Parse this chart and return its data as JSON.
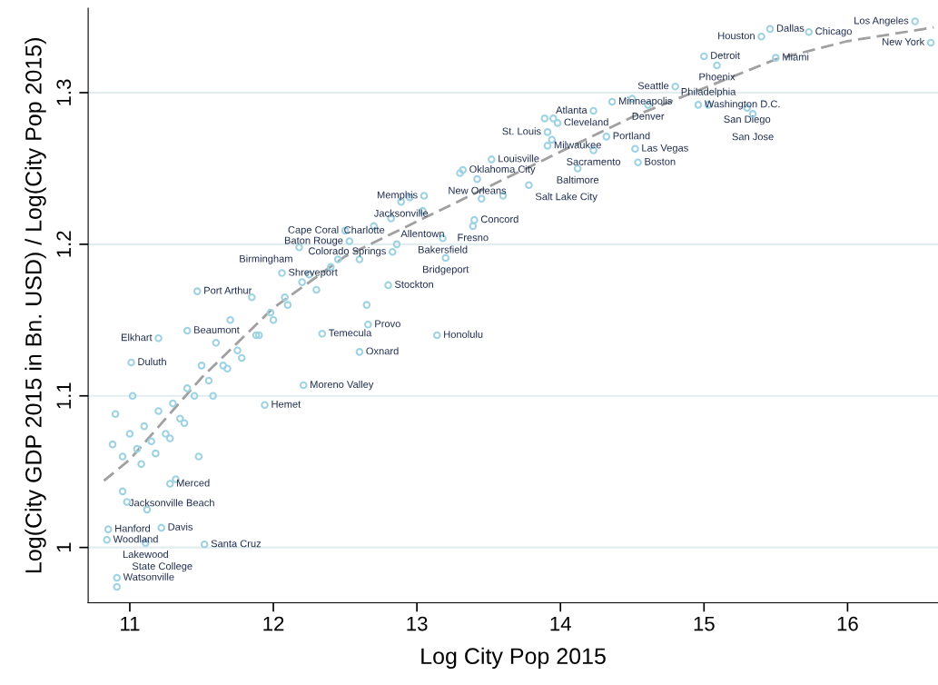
{
  "chart_data": {
    "type": "scatter",
    "xlabel": "Log City Pop 2015",
    "ylabel": "Log(City GDP 2015 in Bn. USD) / Log(City Pop 2015)",
    "xlim": [
      10.71,
      16.63
    ],
    "ylim": [
      0.9635,
      1.3557
    ],
    "xticks": [
      11,
      12,
      13,
      14,
      15,
      16
    ],
    "yticks": [
      1,
      1.1,
      1.2,
      1.3
    ],
    "grid": "y",
    "legend": false,
    "series": [
      {
        "color": "#9fd3e3",
        "marker": "circle",
        "x": [
          16.47,
          16.58,
          15.46,
          15.4,
          15.73,
          15.0,
          15.09,
          15.5,
          14.8,
          14.36,
          14.5,
          14.61,
          14.96,
          15.03,
          15.3,
          15.34,
          14.23,
          13.89,
          13.95,
          13.98,
          13.91,
          14.32,
          13.94,
          13.91,
          14.23,
          14.52,
          14.54,
          14.12,
          13.52,
          13.32,
          13.42,
          13.78,
          13.05,
          12.89,
          13.04,
          12.82,
          13.4,
          13.39,
          13.18,
          12.5,
          12.53,
          12.86,
          12.83,
          13.2,
          12.18,
          12.06,
          12.8,
          11.47,
          13.14,
          12.6,
          11.4,
          11.2,
          11.01,
          12.21,
          11.94,
          11.28,
          10.95,
          10.85,
          10.84,
          11.11,
          11.52,
          11.22,
          10.91,
          10.91,
          12.66,
          12.34,
          13.3,
          13.45,
          13.6,
          12.95,
          12.7,
          12.6,
          12.4,
          12.3,
          12.2,
          12.1,
          12.0,
          11.9,
          11.85,
          11.75,
          11.7,
          11.65,
          11.6,
          11.55,
          11.5,
          11.45,
          11.4,
          11.35,
          11.3,
          11.25,
          11.2,
          11.15,
          11.1,
          11.05,
          11.0,
          10.95,
          10.9,
          10.88,
          11.08,
          11.18,
          11.28,
          11.38,
          11.48,
          11.58,
          11.68,
          11.78,
          11.88,
          11.98,
          12.08,
          12.25,
          12.45,
          12.65,
          11.02,
          11.12,
          11.32,
          10.98
        ],
        "values": [
          1.347,
          1.333,
          1.342,
          1.337,
          1.34,
          1.324,
          1.318,
          1.323,
          1.304,
          1.294,
          1.296,
          1.292,
          1.292,
          1.292,
          1.29,
          1.286,
          1.288,
          1.283,
          1.283,
          1.28,
          1.274,
          1.271,
          1.269,
          1.265,
          1.262,
          1.263,
          1.254,
          1.25,
          1.256,
          1.249,
          1.243,
          1.239,
          1.232,
          1.228,
          1.222,
          1.217,
          1.216,
          1.212,
          1.204,
          1.209,
          1.202,
          1.2,
          1.195,
          1.191,
          1.198,
          1.181,
          1.173,
          1.169,
          1.14,
          1.129,
          1.143,
          1.138,
          1.122,
          1.107,
          1.094,
          1.042,
          1.037,
          1.012,
          1.005,
          1.003,
          1.002,
          1.013,
          0.98,
          0.974,
          1.147,
          1.141,
          1.247,
          1.23,
          1.232,
          1.231,
          1.212,
          1.19,
          1.185,
          1.17,
          1.175,
          1.16,
          1.15,
          1.14,
          1.165,
          1.13,
          1.15,
          1.12,
          1.135,
          1.11,
          1.12,
          1.1,
          1.105,
          1.085,
          1.095,
          1.075,
          1.09,
          1.07,
          1.08,
          1.065,
          1.075,
          1.06,
          1.088,
          1.068,
          1.055,
          1.062,
          1.072,
          1.082,
          1.06,
          1.1,
          1.118,
          1.125,
          1.14,
          1.155,
          1.165,
          1.18,
          1.19,
          1.16,
          1.1,
          1.025,
          1.045,
          1.03
        ]
      },
      {
        "type": "line",
        "color": "#a0a0a0",
        "line_style": "dashed",
        "x": [
          10.82,
          11.0,
          11.5,
          12.0,
          12.5,
          13.0,
          13.5,
          14.0,
          14.5,
          15.0,
          15.5,
          16.0,
          16.6
        ],
        "values": [
          1.044,
          1.058,
          1.112,
          1.158,
          1.192,
          1.215,
          1.238,
          1.261,
          1.284,
          1.303,
          1.322,
          1.334,
          1.343
        ]
      }
    ],
    "annotations": [
      {
        "text": "Los Angeles",
        "x": 16.47,
        "y": 1.347
      },
      {
        "text": "New York",
        "x": 16.58,
        "y": 1.333
      },
      {
        "text": "Dallas",
        "x": 15.46,
        "y": 1.342
      },
      {
        "text": "Houston",
        "x": 15.4,
        "y": 1.337
      },
      {
        "text": "Chicago",
        "x": 15.73,
        "y": 1.34
      },
      {
        "text": "Detroit",
        "x": 15.0,
        "y": 1.324
      },
      {
        "text": "Phoenix",
        "x": 15.09,
        "y": 1.318
      },
      {
        "text": "Miami",
        "x": 15.5,
        "y": 1.323
      },
      {
        "text": "Seattle",
        "x": 14.8,
        "y": 1.304
      },
      {
        "text": "Minneapolis",
        "x": 14.36,
        "y": 1.294
      },
      {
        "text": "Denver",
        "x": 14.61,
        "y": 1.292
      },
      {
        "text": "Washington D.C.",
        "x": 14.96,
        "y": 1.292
      },
      {
        "text": "Philadelphia",
        "x": 15.03,
        "y": 1.292
      },
      {
        "text": "San Diego",
        "x": 15.3,
        "y": 1.29
      },
      {
        "text": "San Jose",
        "x": 15.34,
        "y": 1.286
      },
      {
        "text": "Atlanta",
        "x": 14.23,
        "y": 1.288
      },
      {
        "text": "Cleveland",
        "x": 13.98,
        "y": 1.28
      },
      {
        "text": "St. Louis",
        "x": 13.91,
        "y": 1.274
      },
      {
        "text": "Portland",
        "x": 14.32,
        "y": 1.271
      },
      {
        "text": "Milwaukee",
        "x": 13.91,
        "y": 1.265
      },
      {
        "text": "Sacramento",
        "x": 14.23,
        "y": 1.262
      },
      {
        "text": "Las Vegas",
        "x": 14.52,
        "y": 1.263
      },
      {
        "text": "Boston",
        "x": 14.54,
        "y": 1.254
      },
      {
        "text": "Baltimore",
        "x": 14.12,
        "y": 1.25
      },
      {
        "text": "Louisville",
        "x": 13.52,
        "y": 1.256
      },
      {
        "text": "Oklahoma City",
        "x": 13.32,
        "y": 1.249
      },
      {
        "text": "New Orleans",
        "x": 13.42,
        "y": 1.243
      },
      {
        "text": "Salt Lake City",
        "x": 13.78,
        "y": 1.239
      },
      {
        "text": "Memphis",
        "x": 13.05,
        "y": 1.232
      },
      {
        "text": "Jacksonville",
        "x": 12.89,
        "y": 1.228
      },
      {
        "text": "Allentown",
        "x": 13.04,
        "y": 1.222
      },
      {
        "text": "Charlotte",
        "x": 12.82,
        "y": 1.217
      },
      {
        "text": "Concord",
        "x": 13.4,
        "y": 1.216
      },
      {
        "text": "Fresno",
        "x": 13.39,
        "y": 1.212
      },
      {
        "text": "Bakersfield",
        "x": 13.18,
        "y": 1.204
      },
      {
        "text": "Cape Coral",
        "x": 12.5,
        "y": 1.209
      },
      {
        "text": "Baton Rouge",
        "x": 12.53,
        "y": 1.202
      },
      {
        "text": "Colorado Springs",
        "x": 12.83,
        "y": 1.195
      },
      {
        "text": "Bridgeport",
        "x": 13.2,
        "y": 1.191
      },
      {
        "text": "Birmingham",
        "x": 12.18,
        "y": 1.198
      },
      {
        "text": "Shreveport",
        "x": 12.06,
        "y": 1.181
      },
      {
        "text": "Stockton",
        "x": 12.8,
        "y": 1.173
      },
      {
        "text": "Port Arthur",
        "x": 11.47,
        "y": 1.169
      },
      {
        "text": "Honolulu",
        "x": 13.14,
        "y": 1.14
      },
      {
        "text": "Oxnard",
        "x": 12.6,
        "y": 1.129
      },
      {
        "text": "Beaumont",
        "x": 11.4,
        "y": 1.143
      },
      {
        "text": "Elkhart",
        "x": 11.2,
        "y": 1.138
      },
      {
        "text": "Duluth",
        "x": 11.01,
        "y": 1.122
      },
      {
        "text": "Moreno Valley",
        "x": 12.21,
        "y": 1.107
      },
      {
        "text": "Hemet",
        "x": 11.94,
        "y": 1.094
      },
      {
        "text": "Merced",
        "x": 11.28,
        "y": 1.042
      },
      {
        "text": "Jacksonville Beach",
        "x": 10.95,
        "y": 1.037
      },
      {
        "text": "Hanford",
        "x": 10.85,
        "y": 1.012
      },
      {
        "text": "Woodland",
        "x": 10.84,
        "y": 1.005
      },
      {
        "text": "Lakewood",
        "x": 11.11,
        "y": 1.003
      },
      {
        "text": "Santa Cruz",
        "x": 11.52,
        "y": 1.002
      },
      {
        "text": "Davis",
        "x": 11.22,
        "y": 1.013
      },
      {
        "text": "Watsonville",
        "x": 10.91,
        "y": 0.98
      },
      {
        "text": "State College",
        "x": 10.91,
        "y": 0.974
      },
      {
        "text": "Provo",
        "x": 12.66,
        "y": 1.147
      },
      {
        "text": "Temecula",
        "x": 12.34,
        "y": 1.141
      }
    ]
  }
}
